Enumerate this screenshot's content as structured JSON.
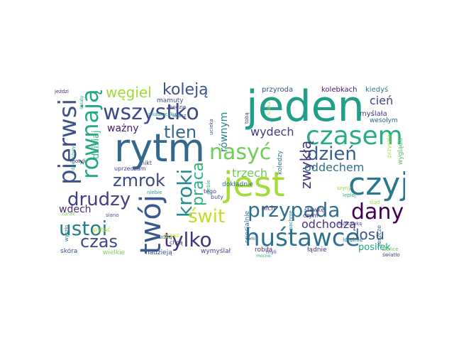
{
  "cloud": {
    "words": [
      {
        "text": "jeden",
        "color": "#1f9e89"
      },
      {
        "text": "jest",
        "color": "#a5db36"
      },
      {
        "text": "rytm",
        "color": "#31688e"
      },
      {
        "text": "czyj",
        "color": "#2a788e"
      },
      {
        "text": "huśtawce",
        "color": "#2c728e"
      },
      {
        "text": "czasem",
        "color": "#26ad81"
      },
      {
        "text": "wszystko",
        "color": "#3e4a89"
      },
      {
        "text": "pierwsi",
        "color": "#3b528b"
      },
      {
        "text": "twój",
        "color": "#38598c"
      },
      {
        "text": "nasyć",
        "color": "#6ece58"
      },
      {
        "text": "przypada",
        "color": "#2e6f8e"
      },
      {
        "text": "dany",
        "color": "#440154"
      },
      {
        "text": "kroki",
        "color": "#238a8d"
      },
      {
        "text": "równają",
        "color": "#22a884"
      },
      {
        "text": "ustoi",
        "color": "#277f8e"
      },
      {
        "text": "zmrok",
        "color": "#404688"
      },
      {
        "text": "tylko",
        "color": "#46337e"
      },
      {
        "text": "drudzy",
        "color": "#433e85"
      },
      {
        "text": "dzień",
        "color": "#355f8d"
      },
      {
        "text": "świt",
        "color": "#bddf26"
      },
      {
        "text": "czas",
        "color": "#3f4788"
      },
      {
        "text": "praca",
        "color": "#2db27d"
      },
      {
        "text": "tlen",
        "color": "#306a8e"
      },
      {
        "text": "koleją",
        "color": "#3b528b"
      },
      {
        "text": "węgiel",
        "color": "#9fda3a"
      },
      {
        "text": "zwykłą",
        "color": "#472f7d"
      },
      {
        "text": "losu",
        "color": "#3a548c"
      },
      {
        "text": "odchodzą",
        "color": "#46327e"
      },
      {
        "text": "wydech",
        "color": "#453882"
      },
      {
        "text": "trzech",
        "color": "#6ccd5a"
      },
      {
        "text": "oddechem",
        "color": "#2f6c8e"
      },
      {
        "text": "cień",
        "color": "#414487"
      },
      {
        "text": "ważny",
        "color": "#481a6c"
      },
      {
        "text": "równym",
        "color": "#26828e"
      },
      {
        "text": "wdech",
        "color": "#472c7a"
      },
      {
        "text": "dzisiaj",
        "color": "#35b779"
      },
      {
        "text": "posiłek",
        "color": "#20a486"
      },
      {
        "text": "myślała",
        "color": "#443983"
      },
      {
        "text": "przyroda",
        "color": "#3c4f8a"
      },
      {
        "text": "kolebkach",
        "color": "#48186a"
      },
      {
        "text": "kiedyś",
        "color": "#2a768e"
      },
      {
        "text": "mamuty",
        "color": "#3e4c8a"
      },
      {
        "text": "wesołym",
        "color": "#31678e"
      },
      {
        "text": "wygląda",
        "color": "#54c568"
      },
      {
        "text": "dokładnie",
        "color": "#2e6d8e"
      },
      {
        "text": "koledzy",
        "color": "#297a8e"
      },
      {
        "text": "nich",
        "color": "#463480"
      },
      {
        "text": "specjalnie",
        "color": "#2d718e"
      },
      {
        "text": "łądnie",
        "color": "#46307e"
      },
      {
        "text": "robiła",
        "color": "#472a7a"
      },
      {
        "text": "wymyślał",
        "color": "#3f4889"
      },
      {
        "text": "nadzieją",
        "color": "#3d4e8a"
      },
      {
        "text": "wielkie",
        "color": "#7ad151"
      },
      {
        "text": "skóra",
        "color": "#3b528b"
      },
      {
        "text": "pytać",
        "color": "#b5de2b"
      },
      {
        "text": "łudzą",
        "color": "#355e8d"
      },
      {
        "text": "chcą",
        "color": "#414487"
      },
      {
        "text": "grasz",
        "color": "#d2e21b"
      },
      {
        "text": "lojalnie",
        "color": "#2c738e"
      },
      {
        "text": "jeszcze",
        "color": "#31688e"
      },
      {
        "text": "przyszła",
        "color": "#a8db34"
      },
      {
        "text": "uprzedzam",
        "color": "#3f4788"
      },
      {
        "text": "nikt",
        "color": "#424086"
      },
      {
        "text": "buty",
        "color": "#3b528b"
      },
      {
        "text": "tego",
        "color": "#46327e"
      },
      {
        "text": "czym",
        "color": "#482475"
      },
      {
        "text": "stawkę",
        "color": "#443a83"
      },
      {
        "text": "huśtawkę",
        "color": "#3e4989"
      },
      {
        "text": "miasteczku",
        "color": "#21908d"
      },
      {
        "text": "będzie",
        "color": "#3e4989"
      },
      {
        "text": "skacz",
        "color": "#31688e"
      },
      {
        "text": "jeździ",
        "color": "#481f70"
      },
      {
        "text": "motyli",
        "color": "#471365"
      },
      {
        "text": "siano",
        "color": "#3b528b"
      },
      {
        "text": "zaraz",
        "color": "#7fd34e"
      },
      {
        "text": "wyszło",
        "color": "#2a788e"
      },
      {
        "text": "niebie",
        "color": "#20a386"
      },
      {
        "text": "myli",
        "color": "#433e85"
      },
      {
        "text": "słońce",
        "color": "#5cc863"
      },
      {
        "text": "światło",
        "color": "#443b84"
      },
      {
        "text": "ucieka",
        "color": "#39568c"
      },
      {
        "text": "tobą",
        "color": "#482878"
      },
      {
        "text": "ciebie",
        "color": "#35b779"
      },
      {
        "text": "pachnie",
        "color": "#25848e"
      },
      {
        "text": "śląd",
        "color": "#9bd93c"
      },
      {
        "text": "lepiej",
        "color": "#2ab07f"
      },
      {
        "text": "szyny",
        "color": "#95d840"
      },
      {
        "text": "ściska",
        "color": "#95d840"
      },
      {
        "text": "nimi",
        "color": "#3e4a89"
      },
      {
        "text": "mocno",
        "color": "#22a785"
      },
      {
        "text": "dziewczyny",
        "color": "#1e9b8a"
      },
      {
        "text": "światy",
        "color": "#1fa188"
      }
    ]
  }
}
